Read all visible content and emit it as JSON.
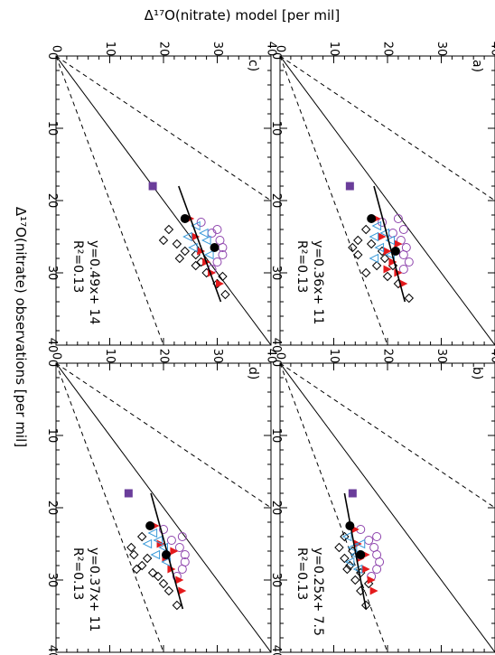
{
  "figure": {
    "top_axis_label": "Δ¹⁷O(nitrate) model [per mil]",
    "left_axis_label": "Δ¹⁷O(nitrate) observations [per mil]"
  },
  "colors": {
    "purple_square": "#6a3d9a",
    "purple_circle": "#8e44ad",
    "red_triangle": "#e41a1c",
    "blue_triangle": "#3a9ad9",
    "black": "#000000"
  },
  "chart_data": [
    {
      "type": "scatter",
      "panel_label": "a)",
      "x_range": [
        0,
        40
      ],
      "y_range": [
        0,
        40
      ],
      "x_ticks": [
        "0",
        "10",
        "20",
        "30",
        "40"
      ],
      "y_ticks": [
        "0",
        "10",
        "20",
        "30",
        "40"
      ],
      "fit_equation": "y=0.36x+ 11",
      "r2_label": "R²=0.13",
      "fit": {
        "slope": 0.36,
        "intercept": 11
      },
      "series": [
        {
          "marker": "square",
          "points": [
            [
              18,
              13
            ]
          ]
        },
        {
          "marker": "diamond",
          "points": [
            [
              24,
              16
            ],
            [
              25.5,
              14.5
            ],
            [
              26.5,
              13.5
            ],
            [
              27.5,
              14.5
            ],
            [
              26,
              17
            ],
            [
              29,
              18
            ],
            [
              30.5,
              20
            ],
            [
              31.5,
              22
            ],
            [
              33.5,
              24
            ],
            [
              29,
              21
            ],
            [
              28,
              19.5
            ],
            [
              30,
              16
            ],
            [
              27,
              19
            ]
          ]
        },
        {
          "marker": "circle",
          "points": [
            [
              23,
              19
            ],
            [
              24.5,
              21
            ],
            [
              25.5,
              22.5
            ],
            [
              26.5,
              23.5
            ],
            [
              27.5,
              23
            ],
            [
              28.5,
              24
            ],
            [
              29.5,
              23
            ],
            [
              22.5,
              22
            ],
            [
              24,
              23
            ]
          ]
        },
        {
          "marker": "red-triangle",
          "points": [
            [
              22.5,
              18
            ],
            [
              25,
              19
            ],
            [
              27,
              20
            ],
            [
              28.5,
              21
            ],
            [
              30,
              22
            ],
            [
              31.5,
              23
            ],
            [
              26,
              22
            ],
            [
              29.5,
              20
            ]
          ]
        },
        {
          "marker": "blue-triangle",
          "points": [
            [
              23.5,
              18
            ],
            [
              24.5,
              19.5
            ],
            [
              25.5,
              20.5
            ],
            [
              26.5,
              18.5
            ],
            [
              27.5,
              20.5
            ],
            [
              25,
              17.5
            ],
            [
              28,
              17.5
            ]
          ]
        },
        {
          "marker": "filled-circle",
          "points": [
            [
              22.5,
              17
            ],
            [
              27,
              21.5
            ]
          ]
        }
      ]
    },
    {
      "type": "scatter",
      "panel_label": "b)",
      "x_range": [
        0,
        40
      ],
      "y_range": [
        0,
        40
      ],
      "x_ticks": [
        "0",
        "10",
        "20",
        "30",
        "40"
      ],
      "y_ticks": [
        "0",
        "10",
        "20",
        "30",
        "40"
      ],
      "fit_equation": "y=0.25x+ 7.5",
      "r2_label": "R²=0.13",
      "fit": {
        "slope": 0.25,
        "intercept": 7.5
      },
      "series": [
        {
          "marker": "square",
          "points": [
            [
              18,
              13.5
            ]
          ]
        },
        {
          "marker": "diamond",
          "points": [
            [
              24,
              12
            ],
            [
              25.5,
              11
            ],
            [
              27,
              12
            ],
            [
              28.5,
              12.5
            ],
            [
              30,
              14
            ],
            [
              31.5,
              15
            ],
            [
              33.5,
              16
            ],
            [
              29,
              15
            ],
            [
              26,
              13.5
            ],
            [
              28,
              13
            ],
            [
              30.5,
              16.5
            ]
          ]
        },
        {
          "marker": "circle",
          "points": [
            [
              23,
              15
            ],
            [
              24.5,
              16.5
            ],
            [
              25.5,
              17.5
            ],
            [
              26.5,
              18
            ],
            [
              27.5,
              18.5
            ],
            [
              28.5,
              18
            ],
            [
              29.5,
              17
            ],
            [
              24,
              18
            ]
          ]
        },
        {
          "marker": "red-triangle",
          "points": [
            [
              23,
              14
            ],
            [
              25,
              14.5
            ],
            [
              27,
              15
            ],
            [
              28.5,
              16
            ],
            [
              30,
              17
            ],
            [
              31.5,
              17.5
            ],
            [
              26.5,
              16
            ]
          ]
        },
        {
          "marker": "blue-triangle",
          "points": [
            [
              24,
              12.5
            ],
            [
              25.5,
              13.5
            ],
            [
              26.5,
              14
            ],
            [
              27.5,
              13
            ],
            [
              28.5,
              14.5
            ],
            [
              25,
              15
            ]
          ]
        },
        {
          "marker": "filled-circle",
          "points": [
            [
              22.5,
              13
            ],
            [
              26.5,
              15
            ]
          ]
        }
      ]
    },
    {
      "type": "scatter",
      "panel_label": "c)",
      "x_range": [
        0,
        40
      ],
      "y_range": [
        0,
        40
      ],
      "x_ticks": [
        "0",
        "10",
        "20",
        "30",
        "40"
      ],
      "y_ticks": [
        "0",
        "10",
        "20",
        "30",
        "40"
      ],
      "fit_equation": "y=0.49x+ 14",
      "r2_label": "R²=0.13",
      "fit": {
        "slope": 0.49,
        "intercept": 14
      },
      "series": [
        {
          "marker": "square",
          "points": [
            [
              18,
              18
            ]
          ]
        },
        {
          "marker": "diamond",
          "points": [
            [
              24,
              21
            ],
            [
              25.5,
              20
            ],
            [
              26,
              22.5
            ],
            [
              27.5,
              26
            ],
            [
              28.5,
              27
            ],
            [
              29,
              26
            ],
            [
              30,
              28
            ],
            [
              31.5,
              30
            ],
            [
              33,
              31.5
            ],
            [
              30.5,
              31
            ],
            [
              27,
              24
            ],
            [
              28,
              23
            ]
          ]
        },
        {
          "marker": "circle",
          "points": [
            [
              23,
              27
            ],
            [
              24.5,
              29
            ],
            [
              25.5,
              30.5
            ],
            [
              26.5,
              31
            ],
            [
              27.5,
              31
            ],
            [
              28.5,
              30
            ],
            [
              29.5,
              29
            ],
            [
              24,
              30
            ]
          ]
        },
        {
          "marker": "red-triangle",
          "points": [
            [
              22.5,
              25
            ],
            [
              25,
              26
            ],
            [
              27,
              27
            ],
            [
              28.5,
              28
            ],
            [
              30,
              29
            ],
            [
              31.5,
              30.5
            ]
          ]
        },
        {
          "marker": "blue-triangle",
          "points": [
            [
              23.5,
              26
            ],
            [
              24.5,
              27.5
            ],
            [
              25.5,
              28
            ],
            [
              26.5,
              25.5
            ],
            [
              27.5,
              28.5
            ],
            [
              25,
              24.5
            ]
          ]
        },
        {
          "marker": "filled-circle",
          "points": [
            [
              22.5,
              24
            ],
            [
              26.5,
              29.5
            ]
          ]
        }
      ]
    },
    {
      "type": "scatter",
      "panel_label": "d)",
      "x_range": [
        0,
        40
      ],
      "y_range": [
        0,
        40
      ],
      "x_ticks": [
        "0",
        "10",
        "20",
        "30",
        "40"
      ],
      "y_ticks": [
        "0",
        "10",
        "20",
        "30",
        "40"
      ],
      "fit_equation": "y=0.37x+ 11",
      "r2_label": "R²=0.13",
      "fit": {
        "slope": 0.37,
        "intercept": 11
      },
      "series": [
        {
          "marker": "square",
          "points": [
            [
              18,
              13.5
            ]
          ]
        },
        {
          "marker": "diamond",
          "points": [
            [
              24,
              16
            ],
            [
              25.5,
              14
            ],
            [
              26.5,
              14.5
            ],
            [
              28,
              16
            ],
            [
              29,
              18
            ],
            [
              30.5,
              20
            ],
            [
              31.5,
              21
            ],
            [
              33.5,
              22.5
            ],
            [
              29.5,
              19
            ],
            [
              27,
              17
            ],
            [
              28.5,
              15
            ]
          ]
        },
        {
          "marker": "circle",
          "points": [
            [
              23,
              20
            ],
            [
              24.5,
              21.5
            ],
            [
              25.5,
              23
            ],
            [
              26.5,
              24
            ],
            [
              27.5,
              24
            ],
            [
              28.5,
              23.5
            ],
            [
              29.5,
              22.5
            ],
            [
              24,
              23.5
            ]
          ]
        },
        {
          "marker": "red-triangle",
          "points": [
            [
              22.5,
              18.5
            ],
            [
              25,
              19.5
            ],
            [
              27,
              20.5
            ],
            [
              28.5,
              21.5
            ],
            [
              30,
              23
            ],
            [
              31.5,
              23.5
            ],
            [
              26,
              22
            ]
          ]
        },
        {
          "marker": "blue-triangle",
          "points": [
            [
              23.5,
              18
            ],
            [
              24.5,
              19
            ],
            [
              25.5,
              20
            ],
            [
              26.5,
              18.5
            ],
            [
              27.5,
              20.5
            ],
            [
              25,
              17
            ]
          ]
        },
        {
          "marker": "filled-circle",
          "points": [
            [
              22.5,
              17.5
            ],
            [
              26.5,
              20.5
            ]
          ]
        }
      ]
    }
  ]
}
